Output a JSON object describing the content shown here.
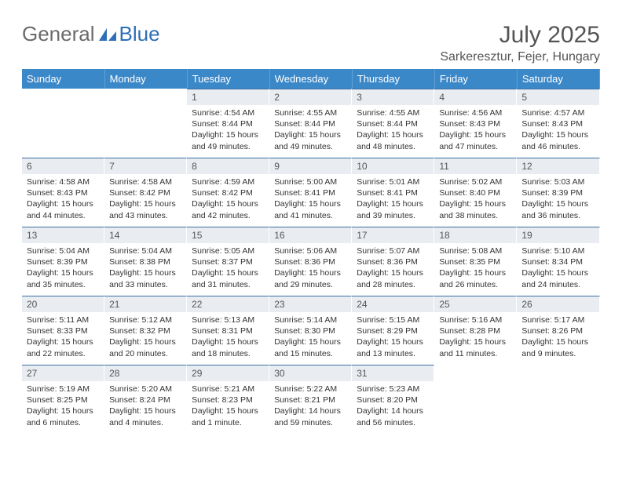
{
  "logo": {
    "general": "General",
    "blue": "Blue"
  },
  "title": "July 2025",
  "location": "Sarkeresztur, Fejer, Hungary",
  "colors": {
    "header_bg": "#3b88c9",
    "header_text": "#ffffff",
    "daynum_bg": "#e9edf1",
    "day_border_top": "#3b6fa0",
    "text": "#333333",
    "title_text": "#555555",
    "logo_gray": "#6b6b6b",
    "logo_blue": "#2e6fb5"
  },
  "day_headers": [
    "Sunday",
    "Monday",
    "Tuesday",
    "Wednesday",
    "Thursday",
    "Friday",
    "Saturday"
  ],
  "weeks": [
    [
      {
        "empty": true
      },
      {
        "empty": true
      },
      {
        "n": "1",
        "sr": "Sunrise: 4:54 AM",
        "ss": "Sunset: 8:44 PM",
        "dl": "Daylight: 15 hours and 49 minutes."
      },
      {
        "n": "2",
        "sr": "Sunrise: 4:55 AM",
        "ss": "Sunset: 8:44 PM",
        "dl": "Daylight: 15 hours and 49 minutes."
      },
      {
        "n": "3",
        "sr": "Sunrise: 4:55 AM",
        "ss": "Sunset: 8:44 PM",
        "dl": "Daylight: 15 hours and 48 minutes."
      },
      {
        "n": "4",
        "sr": "Sunrise: 4:56 AM",
        "ss": "Sunset: 8:43 PM",
        "dl": "Daylight: 15 hours and 47 minutes."
      },
      {
        "n": "5",
        "sr": "Sunrise: 4:57 AM",
        "ss": "Sunset: 8:43 PM",
        "dl": "Daylight: 15 hours and 46 minutes."
      }
    ],
    [
      {
        "n": "6",
        "sr": "Sunrise: 4:58 AM",
        "ss": "Sunset: 8:43 PM",
        "dl": "Daylight: 15 hours and 44 minutes."
      },
      {
        "n": "7",
        "sr": "Sunrise: 4:58 AM",
        "ss": "Sunset: 8:42 PM",
        "dl": "Daylight: 15 hours and 43 minutes."
      },
      {
        "n": "8",
        "sr": "Sunrise: 4:59 AM",
        "ss": "Sunset: 8:42 PM",
        "dl": "Daylight: 15 hours and 42 minutes."
      },
      {
        "n": "9",
        "sr": "Sunrise: 5:00 AM",
        "ss": "Sunset: 8:41 PM",
        "dl": "Daylight: 15 hours and 41 minutes."
      },
      {
        "n": "10",
        "sr": "Sunrise: 5:01 AM",
        "ss": "Sunset: 8:41 PM",
        "dl": "Daylight: 15 hours and 39 minutes."
      },
      {
        "n": "11",
        "sr": "Sunrise: 5:02 AM",
        "ss": "Sunset: 8:40 PM",
        "dl": "Daylight: 15 hours and 38 minutes."
      },
      {
        "n": "12",
        "sr": "Sunrise: 5:03 AM",
        "ss": "Sunset: 8:39 PM",
        "dl": "Daylight: 15 hours and 36 minutes."
      }
    ],
    [
      {
        "n": "13",
        "sr": "Sunrise: 5:04 AM",
        "ss": "Sunset: 8:39 PM",
        "dl": "Daylight: 15 hours and 35 minutes."
      },
      {
        "n": "14",
        "sr": "Sunrise: 5:04 AM",
        "ss": "Sunset: 8:38 PM",
        "dl": "Daylight: 15 hours and 33 minutes."
      },
      {
        "n": "15",
        "sr": "Sunrise: 5:05 AM",
        "ss": "Sunset: 8:37 PM",
        "dl": "Daylight: 15 hours and 31 minutes."
      },
      {
        "n": "16",
        "sr": "Sunrise: 5:06 AM",
        "ss": "Sunset: 8:36 PM",
        "dl": "Daylight: 15 hours and 29 minutes."
      },
      {
        "n": "17",
        "sr": "Sunrise: 5:07 AM",
        "ss": "Sunset: 8:36 PM",
        "dl": "Daylight: 15 hours and 28 minutes."
      },
      {
        "n": "18",
        "sr": "Sunrise: 5:08 AM",
        "ss": "Sunset: 8:35 PM",
        "dl": "Daylight: 15 hours and 26 minutes."
      },
      {
        "n": "19",
        "sr": "Sunrise: 5:10 AM",
        "ss": "Sunset: 8:34 PM",
        "dl": "Daylight: 15 hours and 24 minutes."
      }
    ],
    [
      {
        "n": "20",
        "sr": "Sunrise: 5:11 AM",
        "ss": "Sunset: 8:33 PM",
        "dl": "Daylight: 15 hours and 22 minutes."
      },
      {
        "n": "21",
        "sr": "Sunrise: 5:12 AM",
        "ss": "Sunset: 8:32 PM",
        "dl": "Daylight: 15 hours and 20 minutes."
      },
      {
        "n": "22",
        "sr": "Sunrise: 5:13 AM",
        "ss": "Sunset: 8:31 PM",
        "dl": "Daylight: 15 hours and 18 minutes."
      },
      {
        "n": "23",
        "sr": "Sunrise: 5:14 AM",
        "ss": "Sunset: 8:30 PM",
        "dl": "Daylight: 15 hours and 15 minutes."
      },
      {
        "n": "24",
        "sr": "Sunrise: 5:15 AM",
        "ss": "Sunset: 8:29 PM",
        "dl": "Daylight: 15 hours and 13 minutes."
      },
      {
        "n": "25",
        "sr": "Sunrise: 5:16 AM",
        "ss": "Sunset: 8:28 PM",
        "dl": "Daylight: 15 hours and 11 minutes."
      },
      {
        "n": "26",
        "sr": "Sunrise: 5:17 AM",
        "ss": "Sunset: 8:26 PM",
        "dl": "Daylight: 15 hours and 9 minutes."
      }
    ],
    [
      {
        "n": "27",
        "sr": "Sunrise: 5:19 AM",
        "ss": "Sunset: 8:25 PM",
        "dl": "Daylight: 15 hours and 6 minutes."
      },
      {
        "n": "28",
        "sr": "Sunrise: 5:20 AM",
        "ss": "Sunset: 8:24 PM",
        "dl": "Daylight: 15 hours and 4 minutes."
      },
      {
        "n": "29",
        "sr": "Sunrise: 5:21 AM",
        "ss": "Sunset: 8:23 PM",
        "dl": "Daylight: 15 hours and 1 minute."
      },
      {
        "n": "30",
        "sr": "Sunrise: 5:22 AM",
        "ss": "Sunset: 8:21 PM",
        "dl": "Daylight: 14 hours and 59 minutes."
      },
      {
        "n": "31",
        "sr": "Sunrise: 5:23 AM",
        "ss": "Sunset: 8:20 PM",
        "dl": "Daylight: 14 hours and 56 minutes."
      },
      {
        "empty": true
      },
      {
        "empty": true
      }
    ]
  ]
}
